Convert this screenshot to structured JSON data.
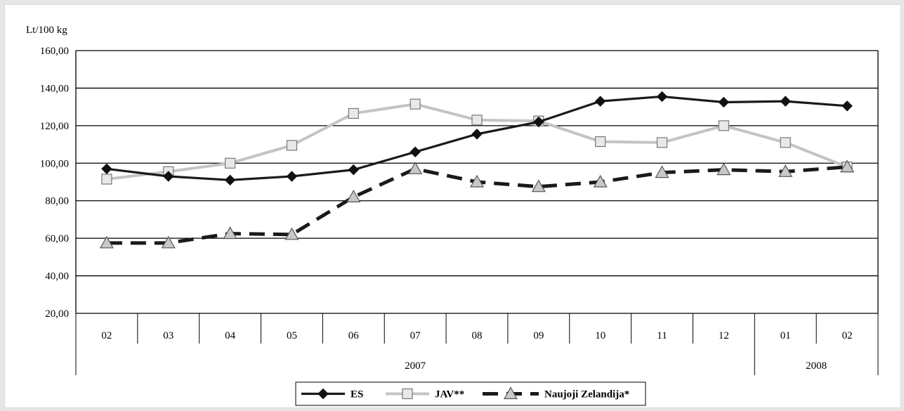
{
  "chart_data": {
    "type": "line",
    "ylabel": "Lt/100 kg",
    "ylim": [
      20,
      160
    ],
    "y_ticks": [
      "20,00",
      "40,00",
      "60,00",
      "80,00",
      "100,00",
      "120,00",
      "140,00",
      "160,00"
    ],
    "categories": [
      "02",
      "03",
      "04",
      "05",
      "06",
      "07",
      "08",
      "09",
      "10",
      "11",
      "12",
      "01",
      "02"
    ],
    "year_groups": [
      {
        "label": "2007",
        "span": 11
      },
      {
        "label": "2008",
        "span": 2
      }
    ],
    "grid": "horizontal",
    "legend_position": "bottom",
    "series": [
      {
        "name": "ES",
        "color": "#1a1a1a",
        "style": "solid",
        "marker": "diamond",
        "values": [
          97,
          93,
          91,
          93,
          96.5,
          106,
          115.5,
          122,
          133,
          135.5,
          132.5,
          133,
          130.5
        ]
      },
      {
        "name": "JAV**",
        "color": "#c4c4c4",
        "style": "solid",
        "marker": "square",
        "values": [
          91.5,
          95.5,
          100,
          109.5,
          126.5,
          131.5,
          123,
          122.5,
          111.5,
          111,
          120,
          111,
          98
        ]
      },
      {
        "name": "Naujoji Zelandija*",
        "color": "#1a1a1a",
        "style": "dashed",
        "marker": "triangle",
        "values": [
          57.5,
          57.5,
          62.5,
          62,
          82,
          97,
          90,
          87.5,
          90,
          95,
          96.5,
          95.5,
          98
        ]
      }
    ]
  }
}
